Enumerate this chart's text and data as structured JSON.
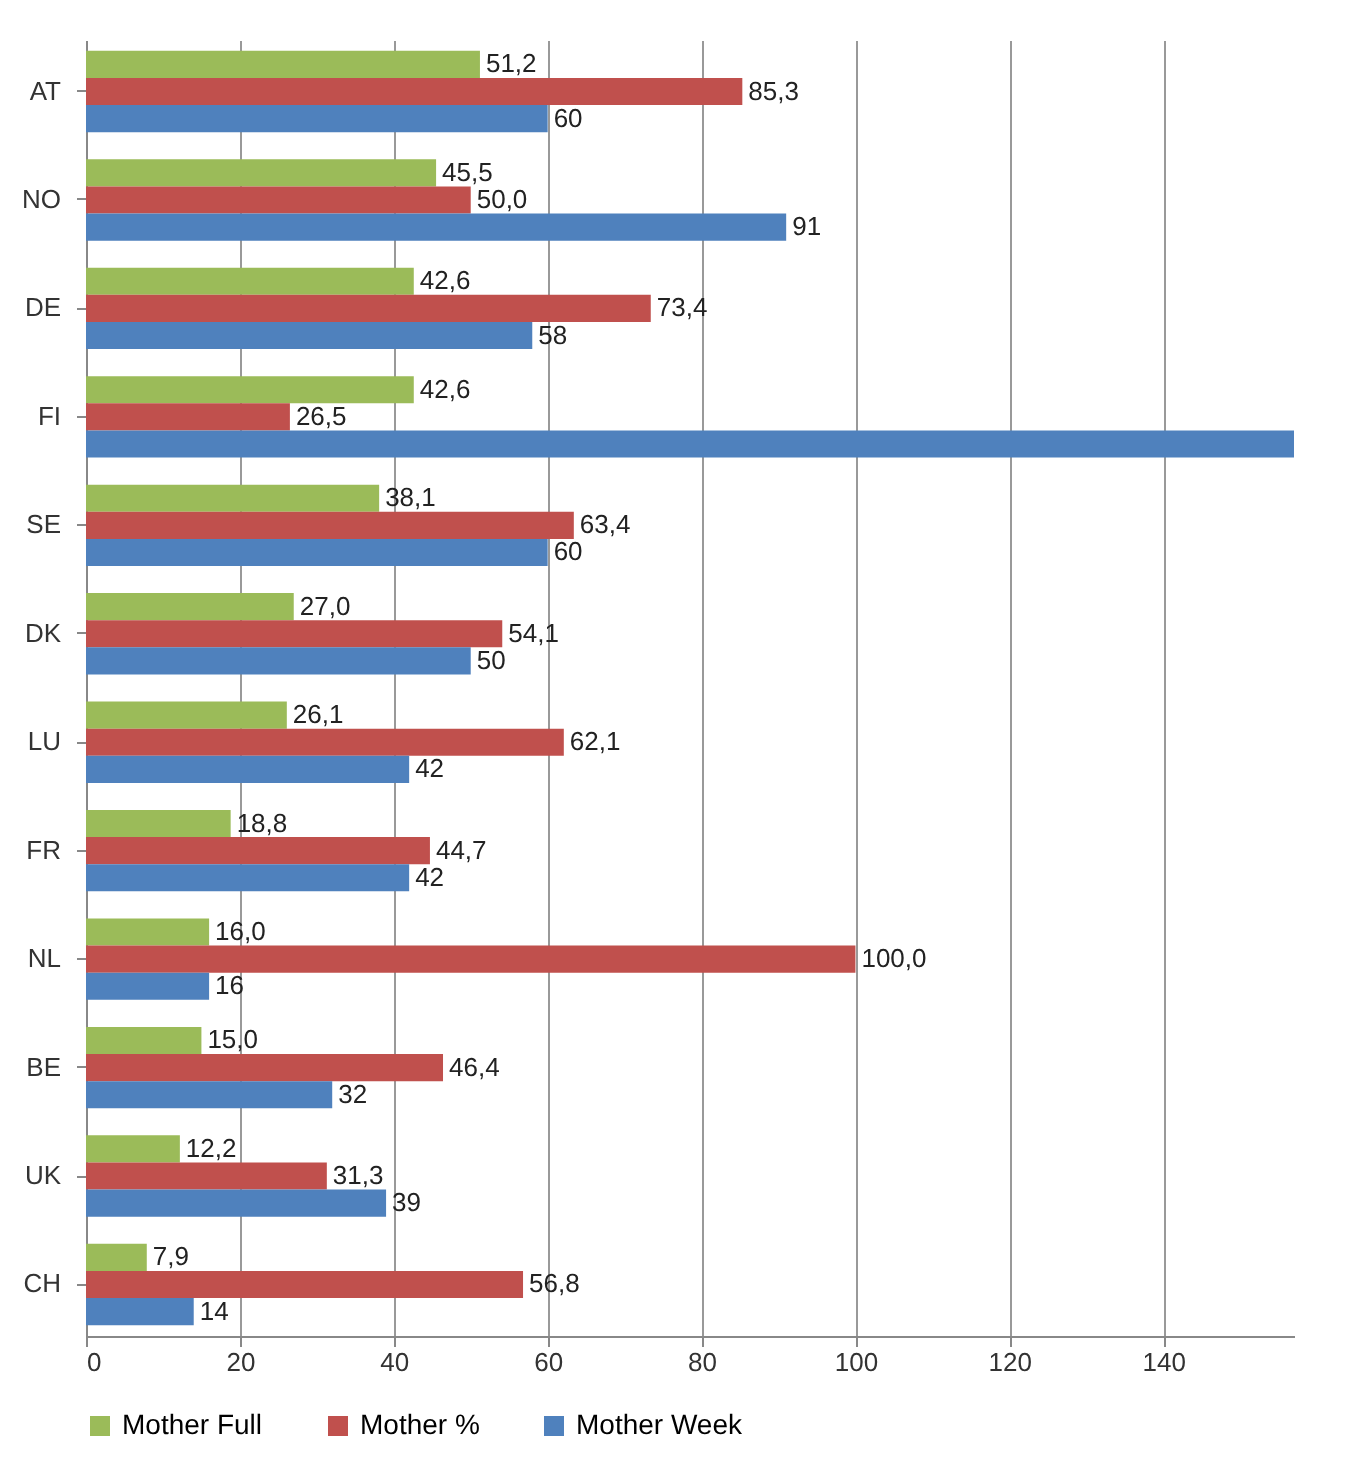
{
  "chart_data": {
    "type": "bar",
    "orientation": "horizontal",
    "categories": [
      "AT",
      "NO",
      "DE",
      "FI",
      "SE",
      "DK",
      "LU",
      "FR",
      "NL",
      "BE",
      "UK",
      "CH"
    ],
    "series": [
      {
        "name": "Mother Full",
        "color": "#9bbb59",
        "values": [
          51.2,
          45.5,
          42.6,
          42.6,
          38.1,
          27.0,
          26.1,
          18.8,
          16.0,
          15.0,
          12.2,
          7.9
        ],
        "value_labels": [
          "51,2",
          "45,5",
          "42,6",
          "42,6",
          "38,1",
          "27,0",
          "26,1",
          "18,8",
          "16,0",
          "15,0",
          "12,2",
          "7,9"
        ]
      },
      {
        "name": "Mother %",
        "color": "#c0504d",
        "values": [
          85.3,
          50.0,
          73.4,
          26.5,
          63.4,
          54.1,
          62.1,
          44.7,
          100.0,
          46.4,
          31.3,
          56.8
        ],
        "value_labels": [
          "85,3",
          "50,0",
          "73,4",
          "26,5",
          "63,4",
          "54,1",
          "62,1",
          "44,7",
          "100,0",
          "46,4",
          "31,3",
          "56,8"
        ]
      },
      {
        "name": "Mother Week",
        "color": "#4f81bd",
        "values": [
          60,
          91,
          58,
          157,
          60,
          50,
          42,
          42,
          16,
          32,
          39,
          14
        ],
        "value_labels": [
          "60",
          "91",
          "58",
          null,
          "60",
          "50",
          "42",
          "42",
          "16",
          "32",
          "39",
          "14"
        ]
      }
    ],
    "xlim": [
      0,
      157
    ],
    "xticks": [
      0,
      20,
      40,
      60,
      80,
      100,
      120,
      140
    ],
    "grid": "x",
    "legend": "bottom"
  }
}
